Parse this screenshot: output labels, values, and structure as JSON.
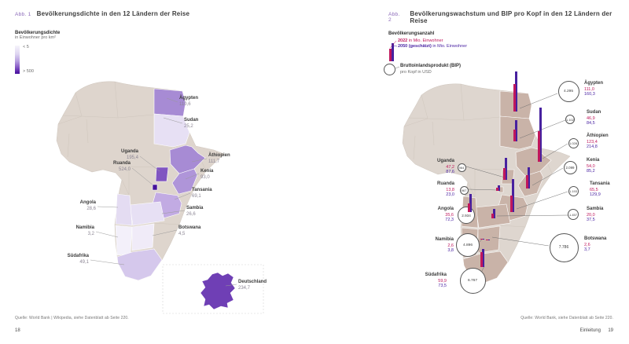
{
  "colors": {
    "density_low": "#f6f4fb",
    "density_high": "#45129b",
    "pop2022_red": "#c0175c",
    "pop2050_purple": "#47219f",
    "trip_country_taupe": "#c9b3a8",
    "base_map_beige": "#ded6cf",
    "fig_label_violet": "#8a68b8"
  },
  "left_page": {
    "fig_label": "Abb. 1",
    "title": "Bevölkerungsdichte in den 12 Ländern der Reise",
    "legend": {
      "title": "Bevölkerungsdichte",
      "subtitle": "in Einwohner pro km²",
      "min_label": "< 5",
      "max_label": "> 500"
    },
    "countries": [
      {
        "name": "Ägypten",
        "value": "110,6"
      },
      {
        "name": "Sudan",
        "value": "25,2"
      },
      {
        "name": "Äthiopien",
        "value": "111,7"
      },
      {
        "name": "Kenia",
        "value": "93,0"
      },
      {
        "name": "Tansania",
        "value": "69,1"
      },
      {
        "name": "Sambia",
        "value": "26,6"
      },
      {
        "name": "Botswana",
        "value": "4,5"
      },
      {
        "name": "Uganda",
        "value": "195,4"
      },
      {
        "name": "Ruanda",
        "value": "524,0"
      },
      {
        "name": "Angola",
        "value": "28,6"
      },
      {
        "name": "Namibia",
        "value": "3,2"
      },
      {
        "name": "Südafrika",
        "value": "49,1"
      },
      {
        "name": "Deutschland",
        "value": "234,7"
      }
    ],
    "source": "Quelle: World Bank | Wikipedia, siehe Datenblatt ab Seite 220.",
    "page_number": "18"
  },
  "right_page": {
    "fig_label": "Abb. 2",
    "title": "Bevölkerungswachstum und BIP pro Kopf in den 12 Ländern der Reise",
    "legend": {
      "title": "Bevölkerungsanzahl",
      "year1": "2022",
      "unit1": "in Mio. Einwohner",
      "year2": "2050 (geschätzt)",
      "unit2": "in Mio. Einwohner",
      "circle_title": "Bruttoinlandsprodukt (BIP)",
      "circle_subtitle": "pro Kopf in USD"
    },
    "countries": [
      {
        "name": "Ägypten",
        "pop2022": "111,0",
        "pop2050": "160,3",
        "gdp": "4.295",
        "pop2022_n": 111.0,
        "pop2050_n": 160.3
      },
      {
        "name": "Sudan",
        "pop2022": "46,9",
        "pop2050": "84,5",
        "gdp": "1.102",
        "pop2022_n": 46.9,
        "pop2050_n": 84.5
      },
      {
        "name": "Äthiopien",
        "pop2022": "123,4",
        "pop2050": "214,8",
        "gdp": "1.028",
        "pop2022_n": 123.4,
        "pop2050_n": 214.8
      },
      {
        "name": "Kenia",
        "pop2022": "54,0",
        "pop2050": "85,2",
        "gdp": "2.099",
        "pop2022_n": 54.0,
        "pop2050_n": 85.2
      },
      {
        "name": "Tansania",
        "pop2022": "65,5",
        "pop2050": "129,9",
        "gdp": "1.193",
        "pop2022_n": 65.5,
        "pop2050_n": 129.9
      },
      {
        "name": "Sambia",
        "pop2022": "20,0",
        "pop2050": "37,5",
        "gdp": "1.457",
        "pop2022_n": 20.0,
        "pop2050_n": 37.5
      },
      {
        "name": "Botswana",
        "pop2022": "2,6",
        "pop2050": "3,7",
        "gdp": "7.786",
        "pop2022_n": 2.6,
        "pop2050_n": 3.7
      },
      {
        "name": "Uganda",
        "pop2022": "47,2",
        "pop2050": "87,6",
        "gdp": "964",
        "pop2022_n": 47.2,
        "pop2050_n": 87.6
      },
      {
        "name": "Ruanda",
        "pop2022": "13,8",
        "pop2050": "23,0",
        "gdp": "967",
        "pop2022_n": 13.8,
        "pop2050_n": 23.0
      },
      {
        "name": "Angola",
        "pop2022": "35,6",
        "pop2050": "72,3",
        "gdp": "2.934",
        "pop2022_n": 35.6,
        "pop2050_n": 72.3
      },
      {
        "name": "Namibia",
        "pop2022": "2,6",
        "pop2050": "3,8",
        "gdp": "4.896",
        "pop2022_n": 2.6,
        "pop2050_n": 3.8
      },
      {
        "name": "Südafrika",
        "pop2022": "59,9",
        "pop2050": "73,5",
        "gdp": "6.767",
        "pop2022_n": 59.9,
        "pop2050_n": 73.5
      }
    ],
    "source": "Quelle: World Bank, siehe Datenblatt ab Seite 220.",
    "footer_section": "Einleitung",
    "page_number": "19"
  },
  "chart_data": [
    {
      "type": "heatmap",
      "subtype": "choropleth-map-africa",
      "title": "Bevölkerungsdichte in den 12 Ländern der Reise",
      "unit": "Einwohner pro km²",
      "scale_range": [
        "< 5",
        "> 500"
      ],
      "data": [
        {
          "country": "Ägypten",
          "density": 110.6
        },
        {
          "country": "Sudan",
          "density": 25.2
        },
        {
          "country": "Äthiopien",
          "density": 111.7
        },
        {
          "country": "Kenia",
          "density": 93.0
        },
        {
          "country": "Tansania",
          "density": 69.1
        },
        {
          "country": "Uganda",
          "density": 195.4
        },
        {
          "country": "Ruanda",
          "density": 524.0
        },
        {
          "country": "Sambia",
          "density": 26.6
        },
        {
          "country": "Angola",
          "density": 28.6
        },
        {
          "country": "Namibia",
          "density": 3.2
        },
        {
          "country": "Botswana",
          "density": 4.5
        },
        {
          "country": "Südafrika",
          "density": 49.1
        },
        {
          "country": "Deutschland",
          "density": 234.7
        }
      ]
    },
    {
      "type": "bar",
      "subtype": "symbol-map-africa",
      "title": "Bevölkerungswachstum und BIP pro Kopf in den 12 Ländern der Reise",
      "series": [
        {
          "name": "2022 in Mio. Einwohner",
          "color": "#c0175c"
        },
        {
          "name": "2050 (geschätzt) in Mio. Einwohner",
          "color": "#47219f"
        },
        {
          "name": "Bruttoinlandsprodukt (BIP) pro Kopf in USD",
          "symbol": "circle"
        }
      ],
      "data": [
        {
          "country": "Ägypten",
          "pop_2022": 111.0,
          "pop_2050": 160.3,
          "bip_pro_kopf_usd": 4295
        },
        {
          "country": "Sudan",
          "pop_2022": 46.9,
          "pop_2050": 84.5,
          "bip_pro_kopf_usd": 1102
        },
        {
          "country": "Äthiopien",
          "pop_2022": 123.4,
          "pop_2050": 214.8,
          "bip_pro_kopf_usd": 1028
        },
        {
          "country": "Kenia",
          "pop_2022": 54.0,
          "pop_2050": 85.2,
          "bip_pro_kopf_usd": 2099
        },
        {
          "country": "Tansania",
          "pop_2022": 65.5,
          "pop_2050": 129.9,
          "bip_pro_kopf_usd": 1193
        },
        {
          "country": "Sambia",
          "pop_2022": 20.0,
          "pop_2050": 37.5,
          "bip_pro_kopf_usd": 1457
        },
        {
          "country": "Botswana",
          "pop_2022": 2.6,
          "pop_2050": 3.7,
          "bip_pro_kopf_usd": 7786
        },
        {
          "country": "Uganda",
          "pop_2022": 47.2,
          "pop_2050": 87.6,
          "bip_pro_kopf_usd": 964
        },
        {
          "country": "Ruanda",
          "pop_2022": 13.8,
          "pop_2050": 23.0,
          "bip_pro_kopf_usd": 967
        },
        {
          "country": "Angola",
          "pop_2022": 35.6,
          "pop_2050": 72.3,
          "bip_pro_kopf_usd": 2934
        },
        {
          "country": "Namibia",
          "pop_2022": 2.6,
          "pop_2050": 3.8,
          "bip_pro_kopf_usd": 4896
        },
        {
          "country": "Südafrika",
          "pop_2022": 59.9,
          "pop_2050": 73.5,
          "bip_pro_kopf_usd": 6767
        }
      ]
    }
  ]
}
